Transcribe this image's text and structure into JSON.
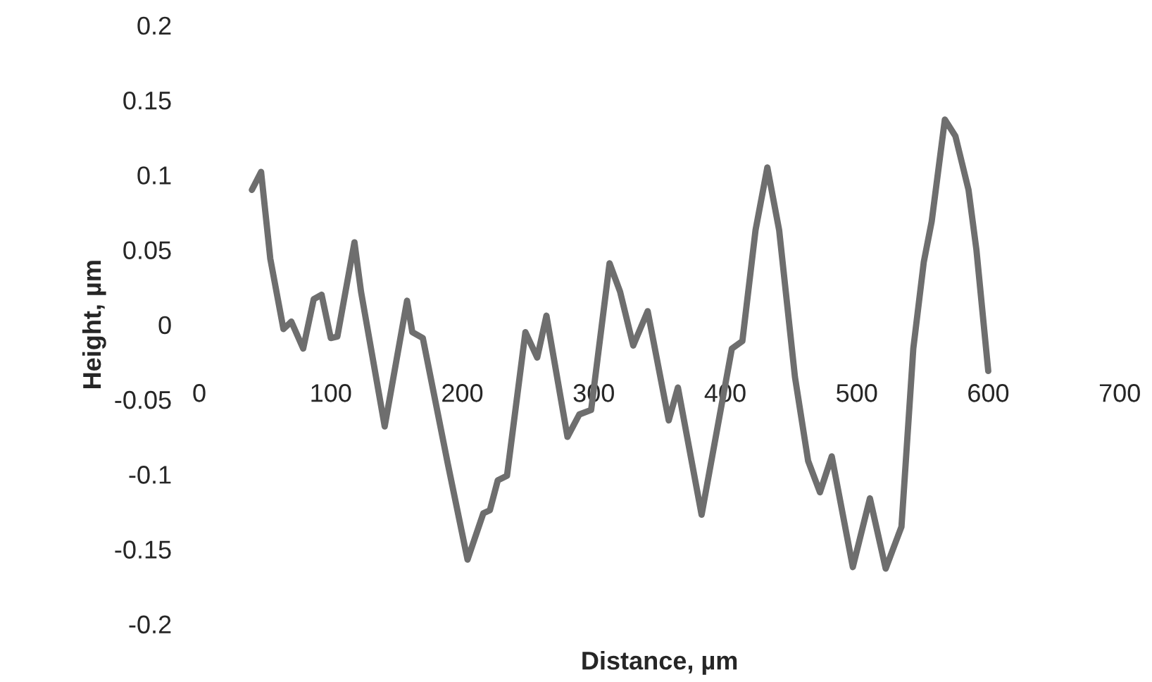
{
  "chart_data": {
    "type": "line",
    "xlabel": "Distance, µm",
    "ylabel": "Height, µm",
    "xlim": [
      0,
      700
    ],
    "xticks": [
      0,
      100,
      200,
      300,
      400,
      500,
      600,
      700
    ],
    "ylim": [
      -0.2,
      0.2
    ],
    "yticks": [
      -0.2,
      -0.15,
      -0.1,
      -0.05,
      0,
      0.05,
      0.1,
      0.15,
      0.2
    ],
    "grid": false,
    "legend": false,
    "series": [
      {
        "color": "#6e6e6e",
        "x": [
          40,
          47,
          54,
          64,
          70,
          79,
          87,
          93,
          100,
          105,
          118,
          123,
          141,
          158,
          162,
          170,
          189,
          204,
          216,
          221,
          227,
          234,
          248,
          257,
          264,
          280,
          289,
          298,
          312,
          320,
          330,
          341,
          357,
          364,
          382,
          405,
          413,
          423,
          432,
          441,
          453,
          463,
          472,
          481,
          497,
          510,
          522,
          534,
          543,
          551,
          557,
          567,
          575,
          585,
          591,
          600
        ],
        "values": [
          0.09,
          0.102,
          0.044,
          -0.003,
          0.002,
          -0.016,
          0.017,
          0.02,
          -0.009,
          -0.008,
          0.055,
          0.022,
          -0.068,
          0.016,
          -0.005,
          -0.009,
          -0.093,
          -0.157,
          -0.126,
          -0.124,
          -0.104,
          -0.101,
          -0.005,
          -0.022,
          0.006,
          -0.075,
          -0.06,
          -0.057,
          0.041,
          0.022,
          -0.014,
          0.009,
          -0.064,
          -0.042,
          -0.127,
          -0.016,
          -0.011,
          0.063,
          0.105,
          0.063,
          -0.035,
          -0.091,
          -0.112,
          -0.088,
          -0.162,
          -0.116,
          -0.163,
          -0.135,
          -0.016,
          0.042,
          0.069,
          0.137,
          0.126,
          0.09,
          0.05,
          -0.031
        ]
      }
    ]
  }
}
